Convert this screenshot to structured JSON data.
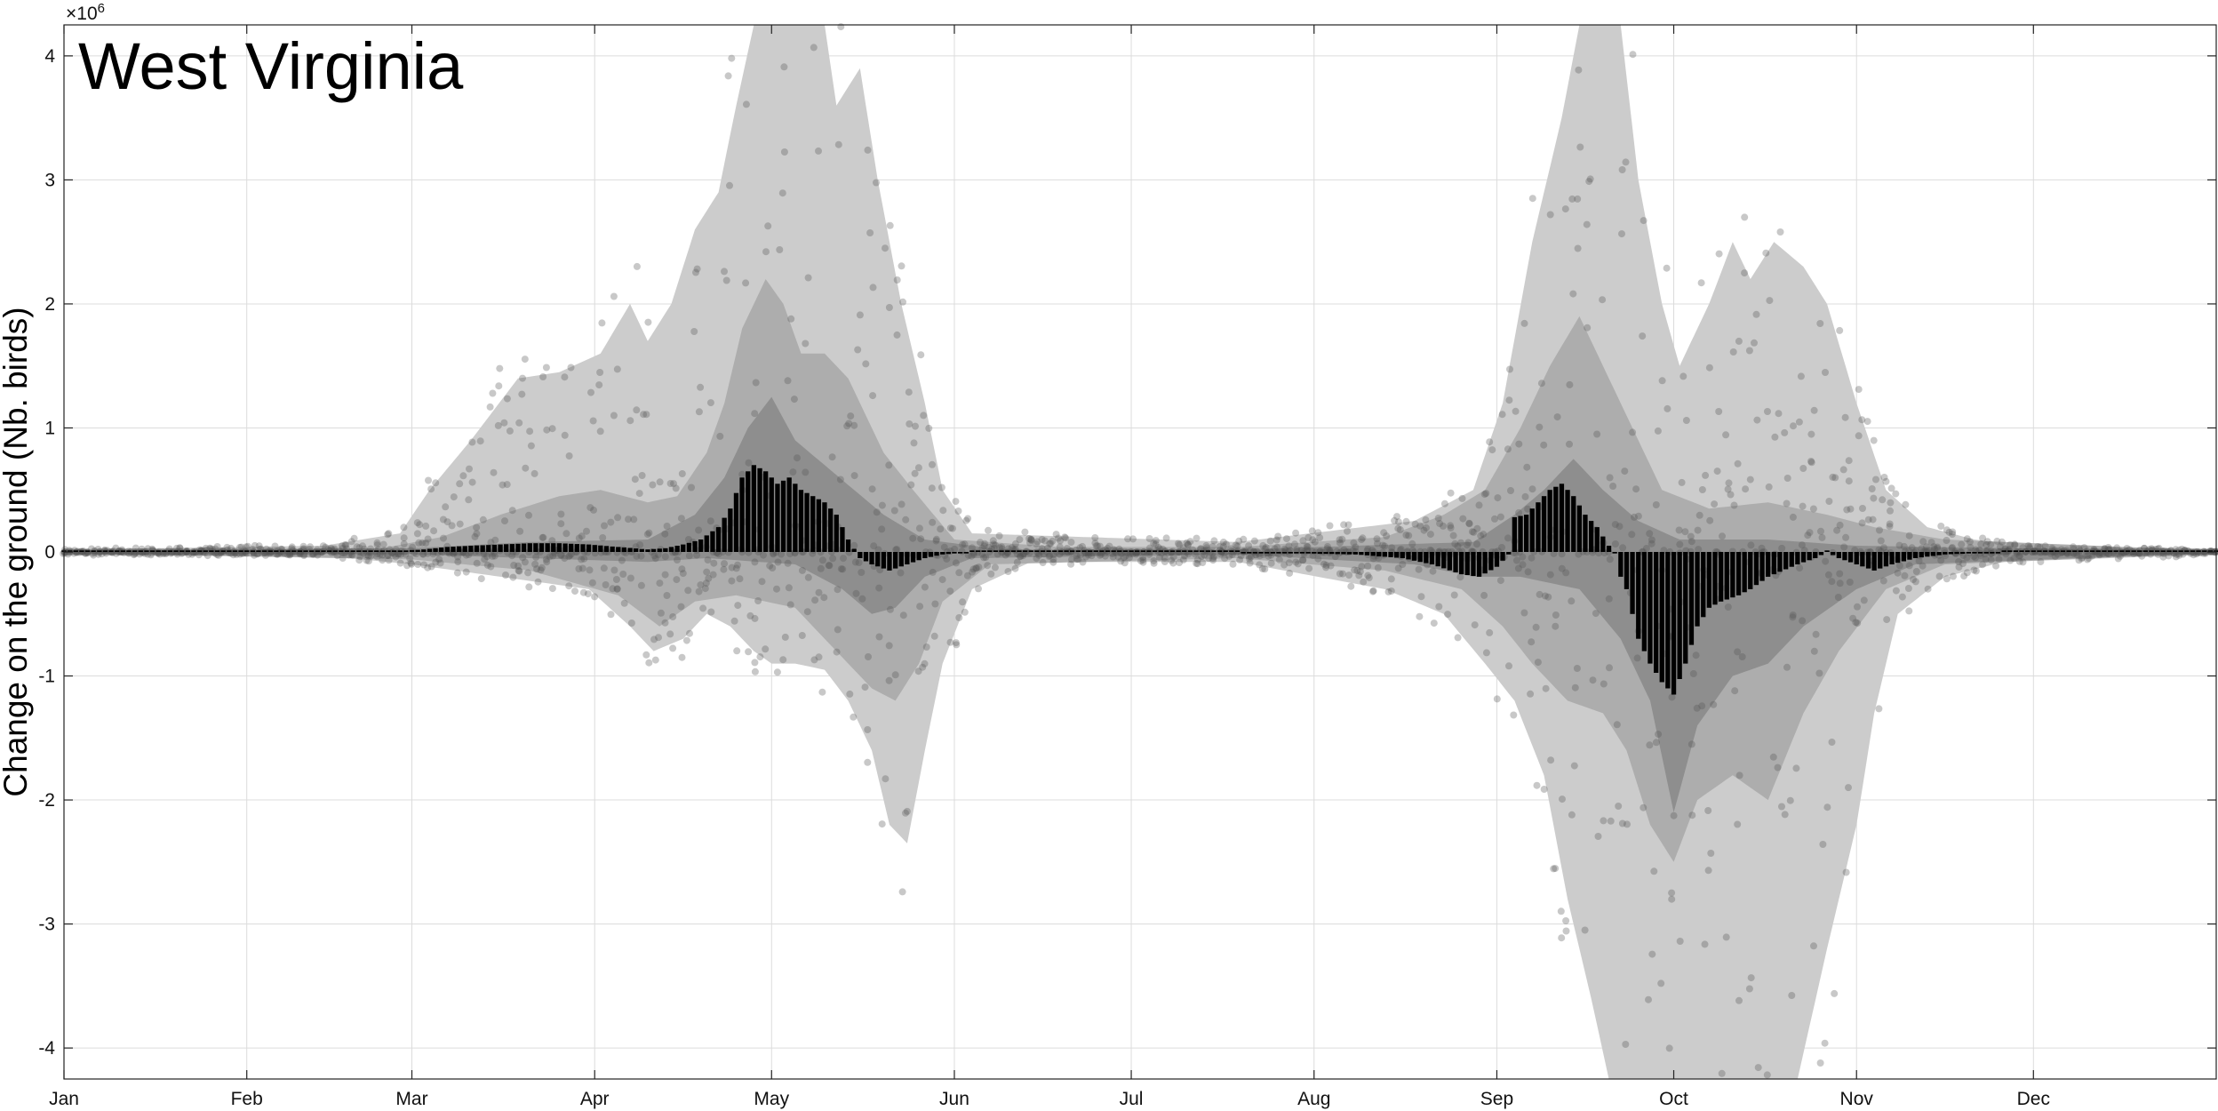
{
  "chart_data": {
    "type": "bar",
    "title": "West Virginia",
    "ylabel": "Change on the ground (Nb. birds)",
    "xlabel": "",
    "y_multiplier_label": "×10",
    "y_multiplier_exponent": "6",
    "ylim": [
      -4.25,
      4.25
    ],
    "yticks": [
      -4,
      -3,
      -2,
      -1,
      0,
      1,
      2,
      3,
      4
    ],
    "xlim": [
      1,
      366
    ],
    "grid": true,
    "months": [
      {
        "label": "Jan",
        "day": 1
      },
      {
        "label": "Feb",
        "day": 32
      },
      {
        "label": "Mar",
        "day": 60
      },
      {
        "label": "Apr",
        "day": 91
      },
      {
        "label": "May",
        "day": 121
      },
      {
        "label": "Jun",
        "day": 152
      },
      {
        "label": "Jul",
        "day": 182
      },
      {
        "label": "Aug",
        "day": 213
      },
      {
        "label": "Sep",
        "day": 244
      },
      {
        "label": "Oct",
        "day": 274
      },
      {
        "label": "Nov",
        "day": 305
      },
      {
        "label": "Dec",
        "day": 335
      }
    ],
    "bands": {
      "outer_upper": [
        [
          1,
          0.02
        ],
        [
          45,
          0.05
        ],
        [
          58,
          0.15
        ],
        [
          63,
          0.5
        ],
        [
          70,
          0.9
        ],
        [
          78,
          1.4
        ],
        [
          85,
          1.45
        ],
        [
          92,
          1.6
        ],
        [
          97,
          2.0
        ],
        [
          100,
          1.7
        ],
        [
          104,
          2.0
        ],
        [
          108,
          2.6
        ],
        [
          112,
          2.9
        ],
        [
          115,
          3.6
        ],
        [
          118,
          4.25
        ],
        [
          130,
          4.25
        ],
        [
          132,
          3.6
        ],
        [
          136,
          3.9
        ],
        [
          139,
          3.0
        ],
        [
          143,
          2.0
        ],
        [
          147,
          1.2
        ],
        [
          150,
          0.5
        ],
        [
          155,
          0.15
        ],
        [
          200,
          0.08
        ],
        [
          230,
          0.25
        ],
        [
          240,
          0.5
        ],
        [
          245,
          1.2
        ],
        [
          250,
          2.5
        ],
        [
          255,
          3.5
        ],
        [
          258,
          4.25
        ],
        [
          265,
          4.25
        ],
        [
          268,
          3.0
        ],
        [
          272,
          2.0
        ],
        [
          275,
          1.5
        ],
        [
          280,
          2.0
        ],
        [
          284,
          2.5
        ],
        [
          287,
          2.2
        ],
        [
          291,
          2.5
        ],
        [
          296,
          2.3
        ],
        [
          300,
          2.0
        ],
        [
          305,
          1.2
        ],
        [
          310,
          0.5
        ],
        [
          317,
          0.2
        ],
        [
          325,
          0.1
        ],
        [
          335,
          0.04
        ],
        [
          366,
          0.02
        ]
      ],
      "outer_lower": [
        [
          1,
          -0.02
        ],
        [
          45,
          -0.03
        ],
        [
          60,
          -0.1
        ],
        [
          75,
          -0.2
        ],
        [
          90,
          -0.3
        ],
        [
          97,
          -0.6
        ],
        [
          101,
          -0.8
        ],
        [
          106,
          -0.7
        ],
        [
          110,
          -0.5
        ],
        [
          114,
          -0.6
        ],
        [
          118,
          -0.8
        ],
        [
          121,
          -0.9
        ],
        [
          125,
          -0.9
        ],
        [
          130,
          -0.95
        ],
        [
          134,
          -1.2
        ],
        [
          138,
          -1.6
        ],
        [
          141,
          -2.2
        ],
        [
          144,
          -2.35
        ],
        [
          147,
          -1.6
        ],
        [
          150,
          -0.9
        ],
        [
          155,
          -0.3
        ],
        [
          165,
          -0.08
        ],
        [
          200,
          -0.08
        ],
        [
          225,
          -0.3
        ],
        [
          235,
          -0.5
        ],
        [
          242,
          -0.9
        ],
        [
          247,
          -1.2
        ],
        [
          252,
          -1.8
        ],
        [
          256,
          -2.8
        ],
        [
          260,
          -3.6
        ],
        [
          263,
          -4.25
        ],
        [
          295,
          -4.25
        ],
        [
          300,
          -3.2
        ],
        [
          305,
          -2.2
        ],
        [
          308,
          -1.3
        ],
        [
          312,
          -0.5
        ],
        [
          320,
          -0.2
        ],
        [
          330,
          -0.08
        ],
        [
          366,
          -0.02
        ]
      ],
      "mid_upper": [
        [
          1,
          0.01
        ],
        [
          55,
          0.03
        ],
        [
          65,
          0.12
        ],
        [
          75,
          0.3
        ],
        [
          85,
          0.45
        ],
        [
          92,
          0.5
        ],
        [
          100,
          0.4
        ],
        [
          105,
          0.45
        ],
        [
          110,
          0.8
        ],
        [
          113,
          1.2
        ],
        [
          116,
          1.8
        ],
        [
          120,
          2.2
        ],
        [
          123,
          2.0
        ],
        [
          126,
          1.6
        ],
        [
          130,
          1.6
        ],
        [
          134,
          1.4
        ],
        [
          137,
          1.1
        ],
        [
          140,
          0.8
        ],
        [
          145,
          0.5
        ],
        [
          152,
          0.1
        ],
        [
          170,
          0.04
        ],
        [
          200,
          0.04
        ],
        [
          225,
          0.12
        ],
        [
          235,
          0.3
        ],
        [
          242,
          0.5
        ],
        [
          248,
          1.0
        ],
        [
          253,
          1.5
        ],
        [
          258,
          1.9
        ],
        [
          262,
          1.5
        ],
        [
          267,
          1.0
        ],
        [
          272,
          0.5
        ],
        [
          280,
          0.35
        ],
        [
          290,
          0.4
        ],
        [
          300,
          0.3
        ],
        [
          308,
          0.2
        ],
        [
          320,
          0.1
        ],
        [
          366,
          0.01
        ]
      ],
      "mid_lower": [
        [
          1,
          -0.01
        ],
        [
          60,
          -0.06
        ],
        [
          80,
          -0.15
        ],
        [
          95,
          -0.35
        ],
        [
          102,
          -0.6
        ],
        [
          108,
          -0.4
        ],
        [
          115,
          -0.35
        ],
        [
          125,
          -0.45
        ],
        [
          132,
          -0.8
        ],
        [
          138,
          -1.1
        ],
        [
          142,
          -1.2
        ],
        [
          146,
          -0.9
        ],
        [
          150,
          -0.4
        ],
        [
          158,
          -0.1
        ],
        [
          200,
          -0.05
        ],
        [
          225,
          -0.15
        ],
        [
          238,
          -0.3
        ],
        [
          245,
          -0.6
        ],
        [
          250,
          -0.9
        ],
        [
          256,
          -1.2
        ],
        [
          262,
          -1.3
        ],
        [
          266,
          -1.6
        ],
        [
          270,
          -2.2
        ],
        [
          274,
          -2.5
        ],
        [
          278,
          -2.0
        ],
        [
          284,
          -1.8
        ],
        [
          290,
          -2.0
        ],
        [
          296,
          -1.3
        ],
        [
          302,
          -0.8
        ],
        [
          310,
          -0.3
        ],
        [
          320,
          -0.1
        ],
        [
          366,
          -0.01
        ]
      ],
      "inner_upper": [
        [
          1,
          0.005
        ],
        [
          60,
          0.03
        ],
        [
          80,
          0.08
        ],
        [
          100,
          0.1
        ],
        [
          108,
          0.3
        ],
        [
          113,
          0.6
        ],
        [
          117,
          1.0
        ],
        [
          121,
          1.25
        ],
        [
          125,
          0.9
        ],
        [
          130,
          0.7
        ],
        [
          135,
          0.5
        ],
        [
          140,
          0.3
        ],
        [
          147,
          0.1
        ],
        [
          160,
          0.02
        ],
        [
          200,
          0.02
        ],
        [
          240,
          0.08
        ],
        [
          247,
          0.3
        ],
        [
          252,
          0.5
        ],
        [
          257,
          0.75
        ],
        [
          262,
          0.5
        ],
        [
          268,
          0.25
        ],
        [
          275,
          0.1
        ],
        [
          290,
          0.1
        ],
        [
          305,
          0.05
        ],
        [
          366,
          0.005
        ]
      ],
      "inner_lower": [
        [
          1,
          -0.005
        ],
        [
          60,
          -0.02
        ],
        [
          80,
          -0.05
        ],
        [
          100,
          -0.08
        ],
        [
          110,
          -0.05
        ],
        [
          125,
          -0.1
        ],
        [
          133,
          -0.3
        ],
        [
          138,
          -0.5
        ],
        [
          142,
          -0.45
        ],
        [
          147,
          -0.2
        ],
        [
          155,
          -0.05
        ],
        [
          200,
          -0.02
        ],
        [
          230,
          -0.1
        ],
        [
          240,
          -0.2
        ],
        [
          248,
          -0.2
        ],
        [
          258,
          -0.3
        ],
        [
          265,
          -0.7
        ],
        [
          270,
          -1.2
        ],
        [
          274,
          -2.1
        ],
        [
          278,
          -1.4
        ],
        [
          284,
          -1.0
        ],
        [
          290,
          -0.9
        ],
        [
          296,
          -0.6
        ],
        [
          305,
          -0.3
        ],
        [
          315,
          -0.1
        ],
        [
          366,
          -0.005
        ]
      ]
    },
    "bars": [
      [
        1,
        0
      ],
      [
        55,
        0.005
      ],
      [
        58,
        0.01
      ],
      [
        62,
        0.02
      ],
      [
        66,
        0.04
      ],
      [
        70,
        0.05
      ],
      [
        75,
        0.06
      ],
      [
        80,
        0.07
      ],
      [
        85,
        0.07
      ],
      [
        90,
        0.06
      ],
      [
        95,
        0.04
      ],
      [
        100,
        0.02
      ],
      [
        103,
        0.03
      ],
      [
        106,
        0.06
      ],
      [
        109,
        0.1
      ],
      [
        112,
        0.2
      ],
      [
        114,
        0.35
      ],
      [
        116,
        0.6
      ],
      [
        118,
        0.7
      ],
      [
        120,
        0.65
      ],
      [
        122,
        0.55
      ],
      [
        124,
        0.6
      ],
      [
        126,
        0.5
      ],
      [
        128,
        0.45
      ],
      [
        130,
        0.4
      ],
      [
        132,
        0.3
      ],
      [
        134,
        0.1
      ],
      [
        136,
        -0.05
      ],
      [
        138,
        -0.1
      ],
      [
        141,
        -0.15
      ],
      [
        144,
        -0.1
      ],
      [
        147,
        -0.05
      ],
      [
        150,
        -0.02
      ],
      [
        155,
        0
      ],
      [
        200,
        0
      ],
      [
        220,
        -0.02
      ],
      [
        228,
        -0.05
      ],
      [
        233,
        -0.1
      ],
      [
        238,
        -0.18
      ],
      [
        241,
        -0.2
      ],
      [
        244,
        -0.12
      ],
      [
        246,
        -0.02
      ],
      [
        247,
        0.28
      ],
      [
        249,
        0.3
      ],
      [
        251,
        0.4
      ],
      [
        253,
        0.5
      ],
      [
        255,
        0.55
      ],
      [
        257,
        0.45
      ],
      [
        259,
        0.3
      ],
      [
        261,
        0.2
      ],
      [
        263,
        0.05
      ],
      [
        264,
        -0.01
      ],
      [
        265,
        -0.2
      ],
      [
        266,
        -0.3
      ],
      [
        267,
        -0.5
      ],
      [
        268,
        -0.7
      ],
      [
        270,
        -0.9
      ],
      [
        272,
        -1.05
      ],
      [
        274,
        -1.15
      ],
      [
        276,
        -0.9
      ],
      [
        278,
        -0.6
      ],
      [
        280,
        -0.45
      ],
      [
        282,
        -0.4
      ],
      [
        285,
        -0.35
      ],
      [
        287,
        -0.3
      ],
      [
        290,
        -0.2
      ],
      [
        295,
        -0.1
      ],
      [
        298,
        -0.05
      ],
      [
        300,
        0
      ],
      [
        302,
        -0.05
      ],
      [
        305,
        -0.1
      ],
      [
        308,
        -0.15
      ],
      [
        311,
        -0.1
      ],
      [
        315,
        -0.05
      ],
      [
        320,
        -0.02
      ],
      [
        330,
        0
      ],
      [
        366,
        0
      ]
    ]
  }
}
